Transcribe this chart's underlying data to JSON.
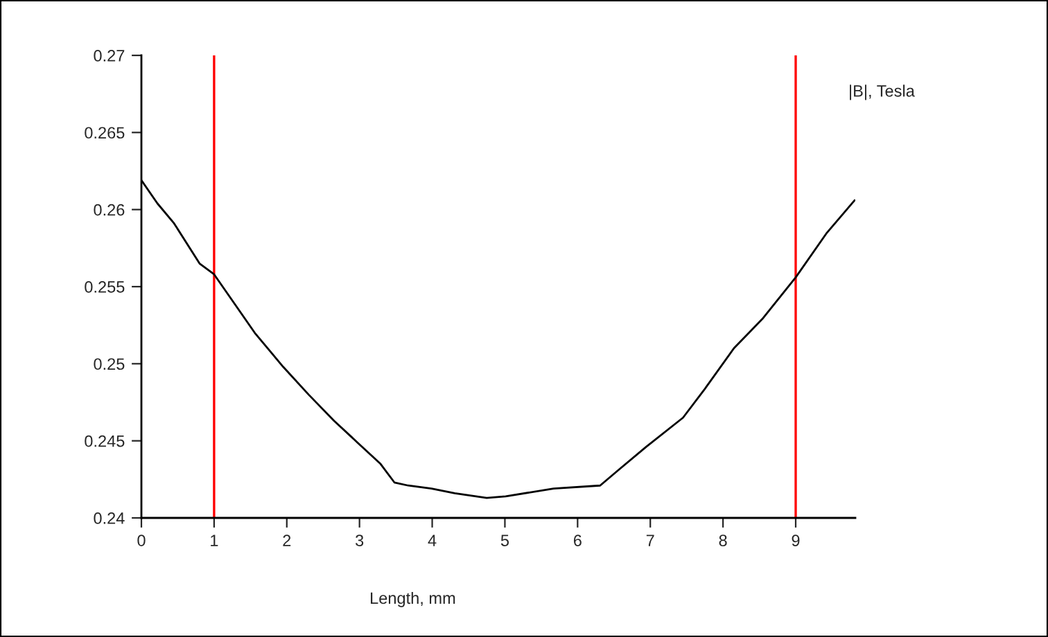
{
  "chart_data": {
    "type": "line",
    "xlabel": "Length, mm",
    "annotations": [
      "|B|, Tesla"
    ],
    "x": [
      0,
      0.22,
      0.45,
      0.8,
      1.0,
      1.31,
      1.56,
      1.95,
      2.3,
      2.65,
      2.97,
      3.29,
      3.48,
      3.67,
      3.99,
      4.31,
      4.75,
      5.01,
      5.67,
      6.31,
      6.56,
      6.94,
      7.45,
      7.74,
      8.15,
      8.54,
      9.0,
      9.43,
      9.81
    ],
    "series": [
      {
        "color": "#000000",
        "values": [
          0.2619,
          0.2604,
          0.2591,
          0.2565,
          0.2558,
          0.2537,
          0.252,
          0.2498,
          0.248,
          0.2463,
          0.2449,
          0.2435,
          0.2423,
          0.2421,
          0.2419,
          0.2416,
          0.2413,
          0.2414,
          0.2419,
          0.2421,
          0.2431,
          0.2446,
          0.2465,
          0.2483,
          0.251,
          0.2529,
          0.2556,
          0.2585,
          0.2606
        ]
      }
    ],
    "xlim": [
      0,
      9.82
    ],
    "xticks": [
      0,
      1,
      2,
      3,
      4,
      5,
      6,
      7,
      8,
      9
    ],
    "ylim": [
      0.24,
      0.27
    ],
    "yticks": [
      0.24,
      0.245,
      0.25,
      0.255,
      0.26,
      0.265,
      0.27
    ],
    "ref_lines": [
      {
        "axis": "x",
        "value": 1,
        "color": "#ff0000"
      },
      {
        "axis": "x",
        "value": 9,
        "color": "#ff0000"
      }
    ],
    "grid": false,
    "marker": "none",
    "line_style": "solid"
  }
}
